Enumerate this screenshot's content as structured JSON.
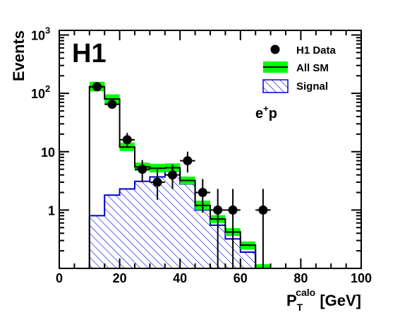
{
  "chart_data": {
    "type": "histogram",
    "logo": "H1",
    "annotation": {
      "base": "e",
      "sup": "+",
      "rest": "p"
    },
    "ylabel": "Events",
    "xlabel": {
      "base": "P",
      "sub": "T",
      "sup": "calo",
      "unit": " [GeV]"
    },
    "xlim": [
      0,
      100
    ],
    "ylim": [
      0.1,
      1200
    ],
    "y_scale": "log",
    "x_ticks": [
      "0",
      "20",
      "40",
      "60",
      "80",
      "100"
    ],
    "y_ticks": [
      {
        "value": 1,
        "label": "1"
      },
      {
        "value": 10,
        "label": "10"
      },
      {
        "value": 100,
        "label": "10",
        "sup": "2"
      },
      {
        "value": 1000,
        "label": "10",
        "sup": "3"
      }
    ],
    "bin_edges": [
      10,
      15,
      20,
      25,
      30,
      35,
      40,
      45,
      50,
      55,
      60,
      65,
      70
    ],
    "series": [
      {
        "name": "All SM",
        "values": [
          130,
          80,
          12,
          5.5,
          5.2,
          5.3,
          3.2,
          1.2,
          0.7,
          0.42,
          0.25,
          0.1
        ],
        "band": [
          [
            108,
            158
          ],
          [
            66,
            96
          ],
          [
            10.2,
            14.3
          ],
          [
            4.7,
            6.5
          ],
          [
            4.4,
            6.2
          ],
          [
            4.5,
            6.3
          ],
          [
            2.75,
            3.75
          ],
          [
            1.0,
            1.45
          ],
          [
            0.6,
            0.82
          ],
          [
            0.36,
            0.49
          ],
          [
            0.21,
            0.29
          ],
          [
            0.085,
            0.118
          ]
        ],
        "color": "#00ff00"
      },
      {
        "name": "Signal",
        "values": [
          0.8,
          1.8,
          2.3,
          3.1,
          3.7,
          4.6,
          2.8,
          1.0,
          0.55,
          0.32,
          0.19,
          0.1
        ],
        "color": "#0000cc"
      }
    ],
    "data_points": {
      "name": "H1 Data",
      "x": [
        12.5,
        17.5,
        22.5,
        27.5,
        32.5,
        37.5,
        42.5,
        47.5,
        52.5,
        57.5,
        67.5
      ],
      "y": [
        130,
        65,
        16,
        5,
        3,
        4,
        7,
        2,
        1,
        1,
        1
      ],
      "err_low": [
        118,
        57,
        12,
        3,
        1.5,
        2.3,
        4.4,
        0.9,
        0.1,
        0.1,
        0.1
      ],
      "err_high": [
        145,
        73,
        21,
        7.2,
        5,
        6,
        10,
        3.4,
        2.3,
        2.3,
        2.3
      ]
    },
    "legend_position": "top-right"
  }
}
